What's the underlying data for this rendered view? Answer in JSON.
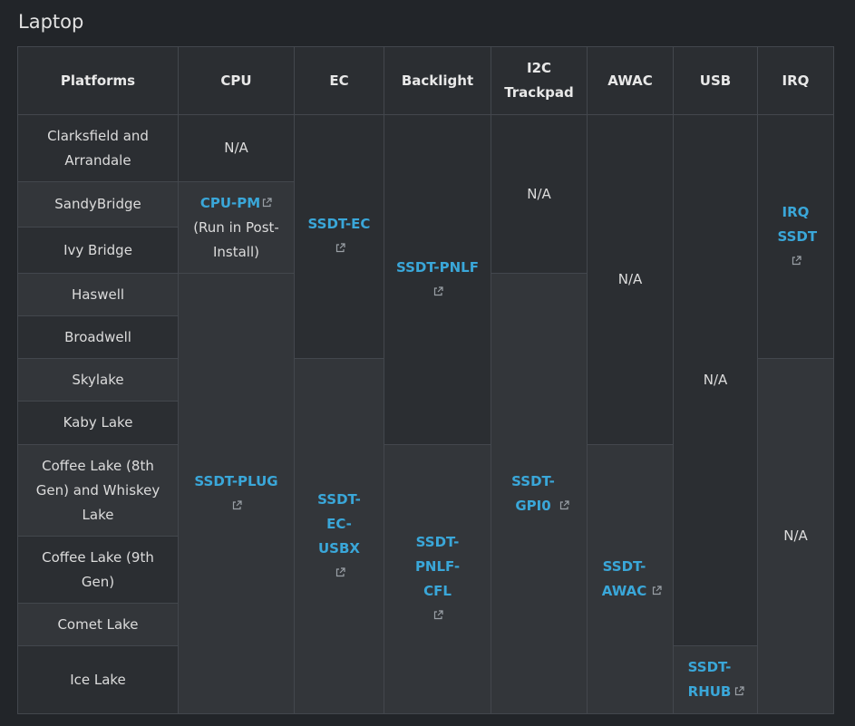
{
  "title": "Laptop",
  "headers": {
    "platforms": "Platforms",
    "cpu": "CPU",
    "ec": "EC",
    "backlight": "Backlight",
    "i2c_line1": "I2C",
    "i2c_line2": "Trackpad",
    "awac": "AWAC",
    "usb": "USB",
    "irq": "IRQ"
  },
  "platforms": [
    "Clarksfield and Arrandale",
    "SandyBridge",
    "Ivy Bridge",
    "Haswell",
    "Broadwell",
    "Skylake",
    "Kaby Lake",
    "Coffee Lake (8th Gen) and Whiskey Lake",
    "Coffee Lake (9th Gen)",
    "Comet Lake",
    "Ice Lake"
  ],
  "cells": {
    "cpu_na": "N/A",
    "cpu_pm_link": "CPU-PM",
    "cpu_pm_note": "(Run in Post-Install)",
    "cpu_plug": "SSDT-PLUG",
    "ec": "SSDT-EC",
    "ec_usbx": "SSDT-EC-USBX",
    "pnlf": "SSDT-PNLF",
    "pnlf_cfl": "SSDT-PNLF-CFL",
    "i2c_na": "N/A",
    "gpio": "SSDT-GPI0",
    "awac_na": "N/A",
    "awac": "SSDT-AWAC",
    "usb_na": "N/A",
    "rhub": "SSDT-RHUB",
    "irq": "IRQ SSDT",
    "irq_na": "N/A"
  },
  "icons": {
    "external_link": "external-link-icon"
  },
  "colors": {
    "link": "#3aa7d9",
    "background": "#222529"
  }
}
